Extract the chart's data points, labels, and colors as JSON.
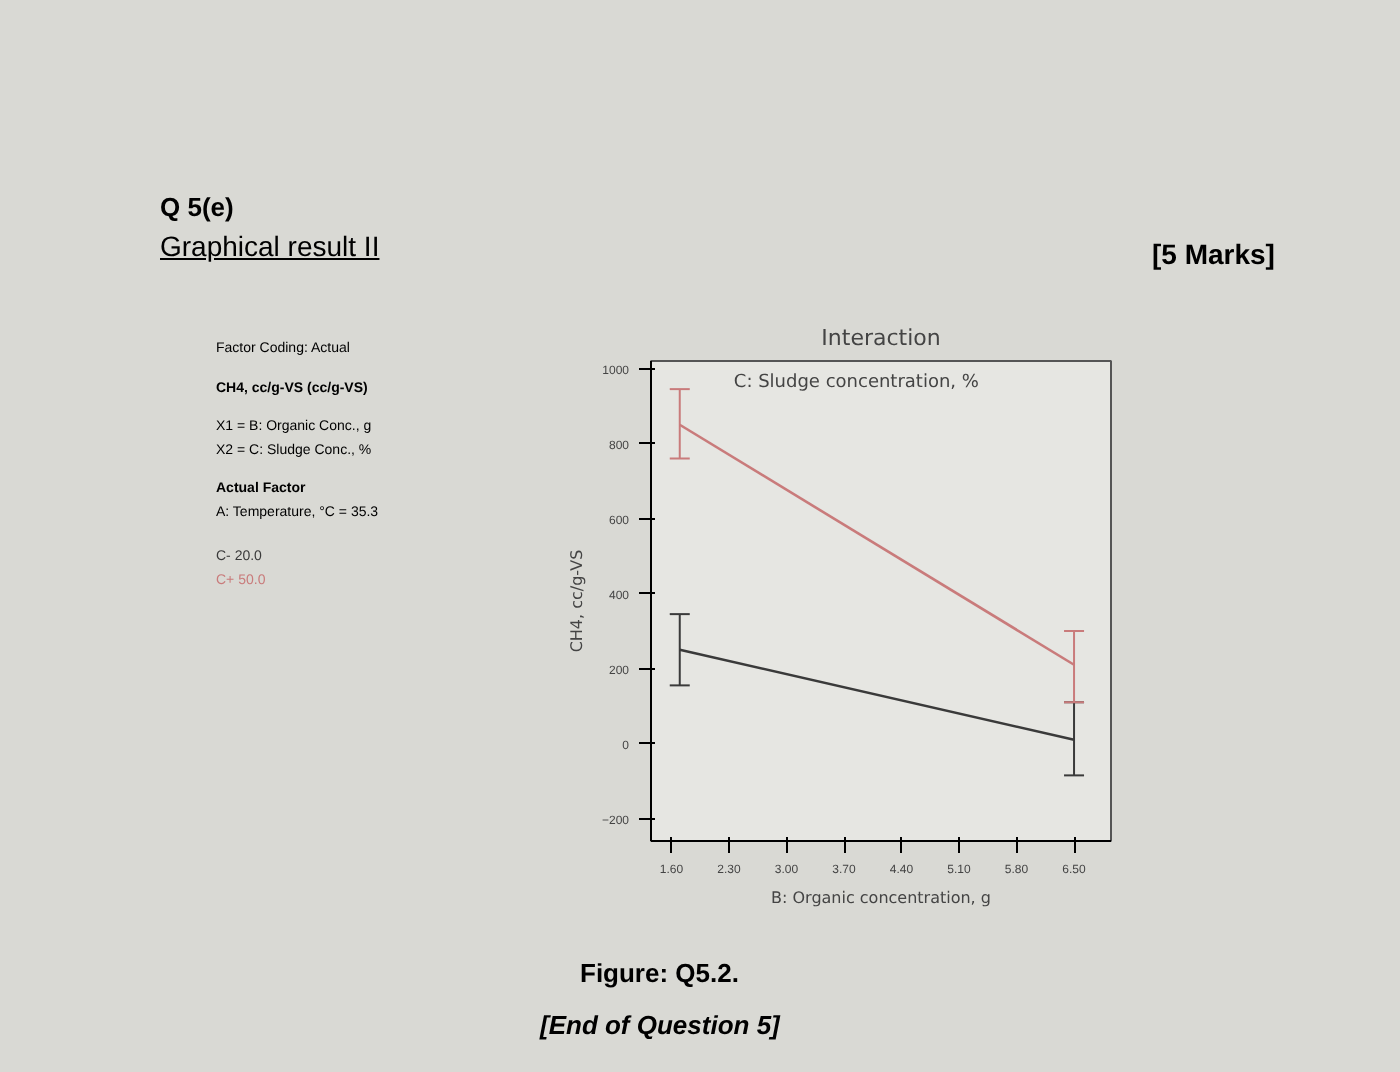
{
  "chart_data": {
    "type": "line",
    "title": "Interaction",
    "subtitle": "C: Sludge concentration, %",
    "xlabel": "B: Organic concentration, g",
    "ylabel": "CH4, cc/g-VS",
    "x": [
      1.7,
      6.5
    ],
    "series": [
      {
        "name": "C- 20.0",
        "color": "#3a3a3a",
        "values": [
          250,
          10
        ],
        "errors": [
          [
            155,
            345
          ],
          [
            -85,
            110
          ]
        ]
      },
      {
        "name": "C+ 50.0",
        "color": "#c97b7b",
        "values": [
          850,
          210
        ],
        "errors": [
          [
            760,
            945
          ],
          [
            110,
            300
          ]
        ]
      }
    ],
    "xlim": [
      1.35,
      6.95
    ],
    "xticks": [
      {
        "value": 1.6,
        "label": "1.60"
      },
      {
        "value": 2.3,
        "label": "2.30"
      },
      {
        "value": 3.0,
        "label": "3.00"
      },
      {
        "value": 3.7,
        "label": "3.70"
      },
      {
        "value": 4.4,
        "label": "4.40"
      },
      {
        "value": 5.1,
        "label": "5.10"
      },
      {
        "value": 5.8,
        "label": "5.80"
      },
      {
        "value": 6.5,
        "label": "6.50"
      }
    ],
    "ylim": [
      -260,
      1020
    ],
    "yticks": [
      -200,
      0,
      200,
      400,
      600,
      800,
      1000
    ],
    "grid": false,
    "annotations": [
      "Q 5(e)",
      "Graphical result II",
      "[5 Marks]",
      "Factor Coding: Actual",
      "CH4, cc/g-VS (cc/g-VS)",
      "X1 = B: Organic Conc., g",
      "X2 = C: Sludge Conc., %",
      "Actual Factor",
      "A: Temperature, °C = 35.3",
      "Figure: Q5.2.",
      "[End of Question 5]"
    ]
  }
}
